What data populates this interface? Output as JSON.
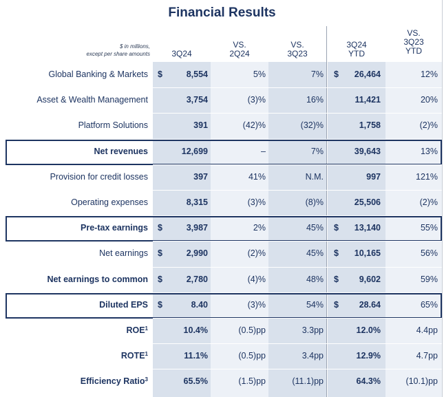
{
  "title": "Financial Results",
  "header": {
    "note_line1": "$ in millions,",
    "note_line2": "except per share amounts",
    "col1": "3Q24",
    "col2_line1": "VS.",
    "col2_line2": "2Q24",
    "col3_line1": "VS.",
    "col3_line2": "3Q23",
    "col4_line1": "3Q24",
    "col4_line2": "YTD",
    "col5_line1": "VS.",
    "col5_line2": "3Q23",
    "col5_line3": "YTD"
  },
  "rows": [
    {
      "label": "Global Banking & Markets",
      "bold": false,
      "d1": "$",
      "v1": "8,554",
      "v2": "5%",
      "v3": "7%",
      "d4": "$",
      "v4": "26,464",
      "v5": "12%"
    },
    {
      "label": "Asset & Wealth Management",
      "bold": false,
      "d1": "",
      "v1": "3,754",
      "v2": "(3)%",
      "v3": "16%",
      "d4": "",
      "v4": "11,421",
      "v5": "20%"
    },
    {
      "label": "Platform Solutions",
      "bold": false,
      "d1": "",
      "v1": "391",
      "v2": "(42)%",
      "v3": "(32)%",
      "d4": "",
      "v4": "1,758",
      "v5": "(2)%"
    },
    {
      "label": "Net revenues",
      "bold": true,
      "d1": "",
      "v1": "12,699",
      "v2": "–",
      "v3": "7%",
      "d4": "",
      "v4": "39,643",
      "v5": "13%"
    },
    {
      "label": "Provision for credit losses",
      "bold": false,
      "d1": "",
      "v1": "397",
      "v2": "41%",
      "v3": "N.M.",
      "d4": "",
      "v4": "997",
      "v5": "121%"
    },
    {
      "label": "Operating expenses",
      "bold": false,
      "d1": "",
      "v1": "8,315",
      "v2": "(3)%",
      "v3": "(8)%",
      "d4": "",
      "v4": "25,506",
      "v5": "(2)%"
    },
    {
      "label": "Pre-tax earnings",
      "bold": true,
      "d1": "$",
      "v1": "3,987",
      "v2": "2%",
      "v3": "45%",
      "d4": "$",
      "v4": "13,140",
      "v5": "55%"
    },
    {
      "label": "Net earnings",
      "bold": false,
      "d1": "$",
      "v1": "2,990",
      "v2": "(2)%",
      "v3": "45%",
      "d4": "$",
      "v4": "10,165",
      "v5": "56%"
    },
    {
      "label": "Net earnings to common",
      "bold": true,
      "d1": "$",
      "v1": "2,780",
      "v2": "(4)%",
      "v3": "48%",
      "d4": "$",
      "v4": "9,602",
      "v5": "59%"
    },
    {
      "label": "Diluted EPS",
      "bold": true,
      "d1": "$",
      "v1": "8.40",
      "v2": "(3)%",
      "v3": "54%",
      "d4": "$",
      "v4": "28.64",
      "v5": "65%"
    },
    {
      "label": "ROE",
      "sup": "1",
      "bold": true,
      "d1": "",
      "v1": "10.4%",
      "v2": "(0.5)pp",
      "v3": "3.3pp",
      "d4": "",
      "v4": "12.0%",
      "v5": "4.4pp"
    },
    {
      "label": "ROTE",
      "sup": "1",
      "bold": true,
      "d1": "",
      "v1": "11.1%",
      "v2": "(0.5)pp",
      "v3": "3.4pp",
      "d4": "",
      "v4": "12.9%",
      "v5": "4.7pp"
    },
    {
      "label": "Efficiency Ratio",
      "sup": "3",
      "bold": true,
      "d1": "",
      "v1": "65.5%",
      "v2": "(1.5)pp",
      "v3": "(11.1)pp",
      "d4": "",
      "v4": "64.3%",
      "v5": "(10.1)pp"
    }
  ],
  "colors": {
    "navy": "#1d3461",
    "band_dark": "#d9e1ec",
    "band_light": "#edf1f7"
  }
}
